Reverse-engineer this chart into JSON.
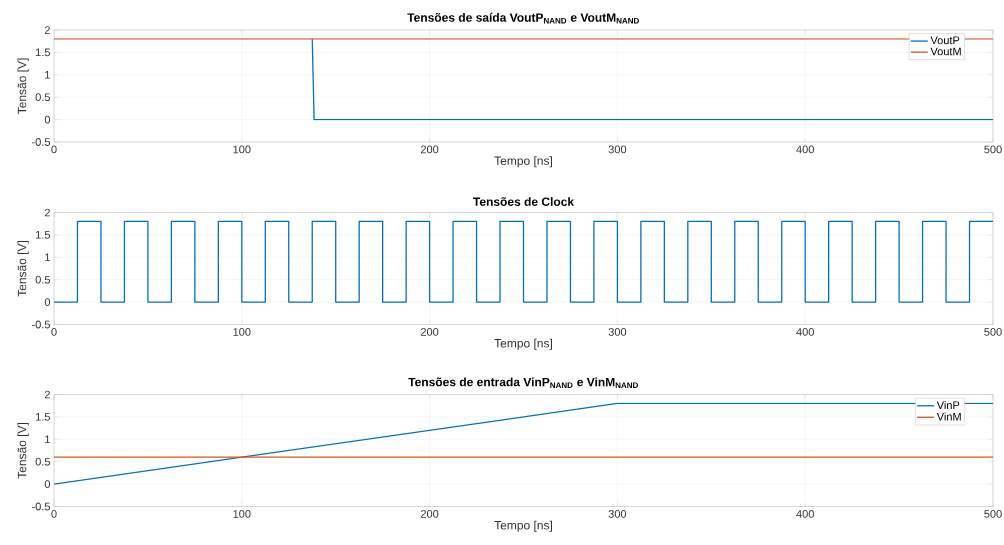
{
  "chart_data": [
    {
      "type": "line",
      "title": "Tensões de saída VoutP$_{NAND}$ e VoutM$_{NAND}$",
      "xlabel": "Tempo [ns]",
      "ylabel": "Tensão [V]",
      "xlim": [
        0,
        500
      ],
      "ylim": [
        -0.5,
        2
      ],
      "xticks": [
        0,
        100,
        200,
        300,
        400,
        500
      ],
      "yticks": [
        -0.5,
        0,
        0.5,
        1,
        1.5,
        2
      ],
      "grid": true,
      "legend": "top right",
      "marker": "none",
      "line_style": "solid",
      "series": [
        {
          "name": "VoutP",
          "color": "#0072bd",
          "x": [
            137.5,
            138.5,
            500
          ],
          "values": [
            1.8,
            0,
            0
          ]
        },
        {
          "name": "VoutM",
          "color": "#d95319",
          "x": [
            0,
            500
          ],
          "values": [
            1.8,
            1.8
          ]
        }
      ]
    },
    {
      "type": "step",
      "title": "Tensões de Clock",
      "xlabel": "Tempo [ns]",
      "ylabel": "Tensão [V]",
      "xlim": [
        0,
        500
      ],
      "ylim": [
        -0.5,
        2
      ],
      "xticks": [
        0,
        100,
        200,
        300,
        400,
        500
      ],
      "yticks": [
        -0.5,
        0,
        0.5,
        1,
        1.5,
        2
      ],
      "grid": true,
      "marker": "none",
      "line_style": "solid",
      "series": [
        {
          "color": "#0072bd",
          "x": [
            0,
            12.5,
            25,
            37.5,
            50,
            62.5,
            75,
            87.5,
            100,
            112.5,
            125,
            137.5,
            150,
            162.5,
            175,
            187.5,
            200,
            212.5,
            225,
            237.5,
            250,
            262.5,
            275,
            287.5,
            300,
            312.5,
            325,
            337.5,
            350,
            362.5,
            375,
            387.5,
            400,
            412.5,
            425,
            437.5,
            450,
            462.5,
            475,
            487.5,
            500
          ],
          "values": [
            0,
            1.8,
            0,
            1.8,
            0,
            1.8,
            0,
            1.8,
            0,
            1.8,
            0,
            1.8,
            0,
            1.8,
            0,
            1.8,
            0,
            1.8,
            0,
            1.8,
            0,
            1.8,
            0,
            1.8,
            0,
            1.8,
            0,
            1.8,
            0,
            1.8,
            0,
            1.8,
            0,
            1.8,
            0,
            1.8,
            0,
            1.8,
            0,
            1.8,
            1.8
          ]
        }
      ]
    },
    {
      "type": "line",
      "title": "Tensões de entrada VinP$_{NAND}$ e VinM$_{NAND}$",
      "xlabel": "Tempo [ns]",
      "ylabel": "Tensão [V]",
      "xlim": [
        0,
        500
      ],
      "ylim": [
        -0.5,
        2
      ],
      "xticks": [
        0,
        100,
        200,
        300,
        400,
        500
      ],
      "yticks": [
        -0.5,
        0,
        0.5,
        1,
        1.5,
        2
      ],
      "grid": true,
      "legend": "top right",
      "marker": "none",
      "line_style": "solid",
      "series": [
        {
          "name": "VinP",
          "color": "#0072bd",
          "x": [
            0,
            300,
            500
          ],
          "values": [
            0,
            1.8,
            1.8
          ]
        },
        {
          "name": "VinM",
          "color": "#d95319",
          "x": [
            0,
            500
          ],
          "values": [
            0.6,
            0.6
          ]
        }
      ]
    }
  ]
}
